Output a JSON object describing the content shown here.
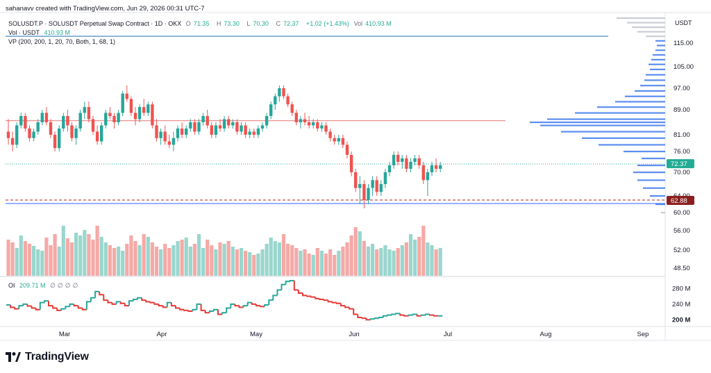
{
  "credit": "sahanavv created with TradingView.com, Jun 29, 2026 00:31 UTC-7",
  "symbol_line": {
    "title": "SOLUSDT.P · SOLUSDT Perpetual Swap Contract · 1D · OKX",
    "open_label": "O",
    "open": "71.35",
    "high_label": "H",
    "high": "73.30",
    "low_label": "L",
    "low": "70.30",
    "close_label": "C",
    "close": "72.37",
    "change": "+1.02 (+1.43%)",
    "vol_label": "Vol",
    "vol": "410.93 M"
  },
  "volume_line": {
    "label": "Vol · USDT",
    "value": "410.93 M"
  },
  "vp_line": "VP (200, 200, 1, 20, 70, Both, 1, 68, 1)",
  "oi_line": {
    "label": "OI",
    "value": "209.71 M",
    "icons": [
      "∅",
      "∅",
      "∅",
      "∅"
    ]
  },
  "brand": "TradingView",
  "colors": {
    "up": "#26a69a",
    "down": "#ef5350",
    "vp": "#5b8def",
    "resistance": "#e57373",
    "support": "#2962ff",
    "last_price": "#22ab94",
    "marker": "#8b2020"
  },
  "chart_data": {
    "type": "candlestick",
    "currency_label": "USDT",
    "price_axis_ticks": [
      "115.00",
      "105.00",
      "97.00",
      "89.00",
      "81.00",
      "76.00",
      "70.00",
      "64.00",
      "60.00",
      "56.00",
      "52.00",
      "48.50"
    ],
    "oi_axis_ticks": [
      "280 M",
      "240 M",
      "200 M"
    ],
    "time_axis": [
      "Mar",
      "Apr",
      "May",
      "Jun",
      "Jul",
      "Aug",
      "Sep"
    ],
    "last_price_label": "72.37",
    "marker_label": "62.88",
    "resistance_level": 85.5,
    "support_level": 62.0,
    "profile_level": 118.0,
    "ohlc": [
      [
        82,
        86,
        78,
        80
      ],
      [
        80,
        82,
        76,
        78
      ],
      [
        78,
        85,
        77,
        84
      ],
      [
        84,
        88,
        83,
        87
      ],
      [
        87,
        88,
        82,
        83
      ],
      [
        83,
        84,
        79,
        80
      ],
      [
        80,
        83,
        79,
        82
      ],
      [
        82,
        86,
        81,
        85
      ],
      [
        85,
        89,
        84,
        88
      ],
      [
        88,
        90,
        84,
        85
      ],
      [
        85,
        86,
        80,
        81
      ],
      [
        81,
        82,
        76,
        77
      ],
      [
        77,
        84,
        76,
        83
      ],
      [
        83,
        88,
        82,
        87
      ],
      [
        87,
        89,
        82,
        84
      ],
      [
        84,
        85,
        79,
        80
      ],
      [
        80,
        84,
        78,
        83
      ],
      [
        83,
        89,
        82,
        88
      ],
      [
        88,
        92,
        86,
        90
      ],
      [
        90,
        92,
        85,
        86
      ],
      [
        86,
        87,
        81,
        82
      ],
      [
        82,
        84,
        78,
        79
      ],
      [
        79,
        85,
        78,
        84
      ],
      [
        84,
        89,
        83,
        88
      ],
      [
        88,
        90,
        86,
        87
      ],
      [
        87,
        88,
        83,
        85
      ],
      [
        85,
        89,
        84,
        88
      ],
      [
        88,
        96,
        87,
        95
      ],
      [
        95,
        98,
        92,
        93
      ],
      [
        93,
        94,
        87,
        88
      ],
      [
        88,
        90,
        84,
        86
      ],
      [
        86,
        91,
        85,
        90
      ],
      [
        90,
        93,
        87,
        88
      ],
      [
        88,
        92,
        87,
        91
      ],
      [
        91,
        92,
        83,
        84
      ],
      [
        84,
        86,
        79,
        80
      ],
      [
        80,
        83,
        78,
        82
      ],
      [
        82,
        84,
        78,
        79
      ],
      [
        79,
        81,
        77,
        78
      ],
      [
        78,
        82,
        76,
        80
      ],
      [
        80,
        84,
        79,
        83
      ],
      [
        83,
        85,
        80,
        81
      ],
      [
        81,
        84,
        80,
        83
      ],
      [
        83,
        86,
        82,
        85
      ],
      [
        85,
        86,
        81,
        82
      ],
      [
        82,
        86,
        81,
        85
      ],
      [
        85,
        88,
        84,
        87
      ],
      [
        87,
        89,
        83,
        84
      ],
      [
        84,
        85,
        80,
        81
      ],
      [
        81,
        85,
        80,
        84
      ],
      [
        84,
        86,
        82,
        83
      ],
      [
        83,
        87,
        82,
        86
      ],
      [
        86,
        87,
        83,
        84
      ],
      [
        84,
        86,
        83,
        85
      ],
      [
        85,
        86,
        81,
        82
      ],
      [
        82,
        85,
        81,
        84
      ],
      [
        84,
        85,
        80,
        81
      ],
      [
        81,
        83,
        80,
        82
      ],
      [
        82,
        83,
        80,
        81
      ],
      [
        81,
        84,
        80,
        83
      ],
      [
        83,
        85,
        82,
        84
      ],
      [
        84,
        88,
        83,
        87
      ],
      [
        87,
        92,
        86,
        91
      ],
      [
        91,
        95,
        89,
        94
      ],
      [
        94,
        98,
        92,
        97
      ],
      [
        97,
        98,
        93,
        94
      ],
      [
        94,
        95,
        90,
        91
      ],
      [
        91,
        92,
        87,
        88
      ],
      [
        88,
        89,
        84,
        85
      ],
      [
        85,
        87,
        83,
        86
      ],
      [
        86,
        88,
        84,
        85
      ],
      [
        85,
        87,
        83,
        84
      ],
      [
        84,
        86,
        83,
        85
      ],
      [
        85,
        86,
        82,
        83
      ],
      [
        83,
        85,
        82,
        84
      ],
      [
        84,
        85,
        81,
        82
      ],
      [
        82,
        83,
        79,
        80
      ],
      [
        80,
        81,
        78,
        79
      ],
      [
        79,
        81,
        78,
        80
      ],
      [
        80,
        81,
        77,
        78
      ],
      [
        78,
        79,
        74,
        75
      ],
      [
        75,
        76,
        69,
        70
      ],
      [
        70,
        71,
        65,
        66
      ],
      [
        66,
        69,
        62,
        67
      ],
      [
        67,
        68,
        61,
        63
      ],
      [
        63,
        67,
        62,
        66
      ],
      [
        66,
        69,
        64,
        68
      ],
      [
        68,
        69,
        64,
        65
      ],
      [
        65,
        68,
        64,
        67
      ],
      [
        67,
        71,
        66,
        70
      ],
      [
        70,
        73,
        69,
        72
      ],
      [
        72,
        76,
        71,
        75
      ],
      [
        75,
        76,
        72,
        73
      ],
      [
        73,
        75,
        71,
        74
      ],
      [
        74,
        75,
        70,
        71
      ],
      [
        71,
        74,
        70,
        73
      ],
      [
        73,
        75,
        72,
        74
      ],
      [
        74,
        75,
        71,
        72
      ],
      [
        72,
        73,
        67,
        68
      ],
      [
        68,
        71,
        64,
        70
      ],
      [
        70,
        73,
        69,
        72
      ],
      [
        72,
        74,
        70,
        71
      ],
      [
        71,
        73,
        70,
        72
      ]
    ],
    "volume": [
      52,
      48,
      40,
      58,
      50,
      46,
      43,
      38,
      36,
      55,
      44,
      60,
      42,
      72,
      54,
      48,
      62,
      58,
      66,
      60,
      52,
      72,
      56,
      48,
      44,
      40,
      42,
      36,
      46,
      58,
      50,
      44,
      60,
      56,
      48,
      42,
      38,
      46,
      40,
      44,
      50,
      52,
      55,
      42,
      46,
      60,
      40,
      52,
      44,
      38,
      48,
      46,
      50,
      42,
      38,
      40,
      36,
      34,
      30,
      32,
      38,
      46,
      55,
      50,
      48,
      60,
      46,
      44,
      40,
      36,
      38,
      32,
      30,
      40,
      36,
      32,
      38,
      30,
      36,
      42,
      48,
      58,
      70,
      64,
      50,
      42,
      46,
      38,
      40,
      44,
      38,
      36,
      40,
      44,
      48,
      60,
      52,
      56,
      72,
      48,
      44,
      38,
      40
    ],
    "open_interest": [
      238,
      232,
      228,
      236,
      240,
      235,
      230,
      226,
      244,
      248,
      236,
      230,
      224,
      228,
      234,
      240,
      236,
      230,
      226,
      246,
      256,
      272,
      264,
      250,
      244,
      240,
      246,
      242,
      236,
      248,
      252,
      256,
      250,
      246,
      244,
      240,
      236,
      232,
      244,
      236,
      230,
      226,
      224,
      222,
      226,
      240,
      224,
      218,
      222,
      226,
      214,
      218,
      230,
      240,
      236,
      232,
      236,
      244,
      240,
      236,
      234,
      238,
      250,
      262,
      276,
      290,
      298,
      300,
      276,
      268,
      262,
      260,
      258,
      254,
      252,
      250,
      246,
      244,
      242,
      236,
      232,
      228,
      214,
      206,
      204,
      200,
      202,
      204,
      206,
      210,
      212,
      214,
      216,
      212,
      210,
      212,
      214,
      210,
      212,
      214,
      212,
      210,
      210
    ],
    "volume_profile_buckets": [
      [
        126,
        70,
        "gray"
      ],
      [
        124,
        55,
        "gray"
      ],
      [
        122,
        48,
        "gray"
      ],
      [
        120,
        40,
        "gray"
      ],
      [
        118,
        28,
        "gray"
      ],
      [
        116,
        14,
        "blue"
      ],
      [
        114,
        12,
        "blue"
      ],
      [
        112,
        14,
        "blue"
      ],
      [
        110,
        18,
        "blue"
      ],
      [
        108,
        20,
        "blue"
      ],
      [
        106,
        24,
        "blue"
      ],
      [
        104,
        22,
        "blue"
      ],
      [
        102,
        28,
        "blue"
      ],
      [
        100,
        30,
        "blue"
      ],
      [
        98,
        36,
        "blue"
      ],
      [
        96,
        44,
        "blue"
      ],
      [
        94,
        58,
        "blue"
      ],
      [
        92,
        72,
        "blue"
      ],
      [
        90,
        98,
        "blue"
      ],
      [
        88,
        130,
        "blue"
      ],
      [
        86,
        170,
        "blue"
      ],
      [
        85,
        195,
        "blue"
      ],
      [
        84,
        180,
        "blue"
      ],
      [
        82,
        150,
        "blue"
      ],
      [
        80,
        120,
        "blue"
      ],
      [
        78,
        96,
        "blue"
      ],
      [
        76,
        60,
        "blue"
      ],
      [
        74,
        34,
        "blue"
      ],
      [
        72,
        40,
        "blue"
      ],
      [
        70,
        46,
        "blue"
      ],
      [
        68,
        40,
        "blue"
      ],
      [
        66,
        32,
        "blue"
      ],
      [
        64,
        22,
        "blue"
      ],
      [
        62,
        14,
        "blue"
      ],
      [
        60,
        6,
        "gray"
      ]
    ]
  }
}
